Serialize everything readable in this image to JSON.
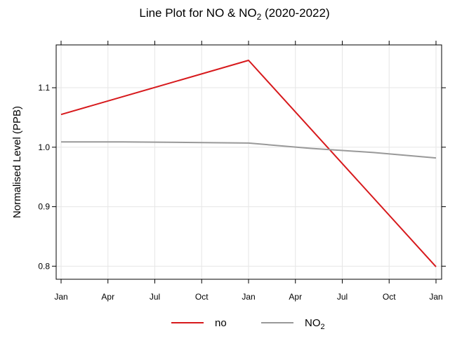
{
  "chart_data": {
    "type": "line",
    "title": {
      "prefix": "Line Plot for NO & NO",
      "subscript": "2",
      "suffix": " (2020-2022)"
    },
    "xlabel": "",
    "ylabel": "Normalised Level (PPB)",
    "x_ticks": [
      "Jan",
      "Apr",
      "Jul",
      "Oct",
      "Jan",
      "Apr",
      "Jul",
      "Oct",
      "Jan"
    ],
    "x_tick_positions": [
      0,
      3,
      6,
      9,
      12,
      15,
      18,
      21,
      24
    ],
    "x_domain": [
      0,
      24
    ],
    "y_ticks": [
      "0.8",
      "0.9",
      "1.0",
      "1.1"
    ],
    "y_tick_values": [
      0.8,
      0.9,
      1.0,
      1.1
    ],
    "ylim": [
      0.778,
      1.172
    ],
    "grid": true,
    "legend_position": "bottom",
    "series": [
      {
        "name": "no",
        "name_subscript": "",
        "color": "#D7191C",
        "x": [
          0,
          12,
          24
        ],
        "y": [
          1.055,
          1.146,
          0.799
        ]
      },
      {
        "name": "NO",
        "name_subscript": "2",
        "color": "#999999",
        "x": [
          0,
          4,
          8,
          12,
          16,
          20,
          24
        ],
        "y": [
          1.009,
          1.009,
          1.008,
          1.007,
          0.998,
          0.991,
          0.982
        ]
      }
    ]
  }
}
